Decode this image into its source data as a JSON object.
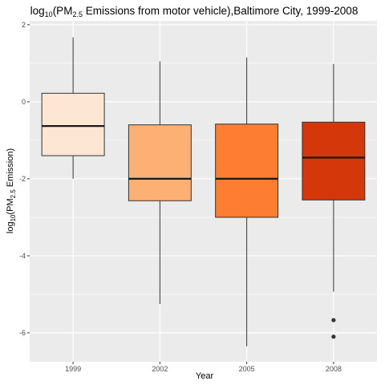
{
  "chart_data": {
    "type": "boxplot",
    "title": {
      "prefix": "log",
      "prefix_sub": "10",
      "paren_open": "(PM",
      "pm_sub": "2.5",
      "rest": " Emissions from motor vehicle),Baltimore City, 1999-2008"
    },
    "xlabel": "Year",
    "ylabel": {
      "prefix": "log",
      "prefix_sub": "10",
      "paren_open": "(PM",
      "pm_sub": "2.5",
      "rest": " Emission)"
    },
    "ylim": [
      -6.75,
      2.1
    ],
    "yticks": [
      2,
      0,
      -2,
      -4,
      -6
    ],
    "categories": [
      "1999",
      "2002",
      "2005",
      "2008"
    ],
    "fill_colors": [
      "#fee6d5",
      "#fdb074",
      "#fd7d33",
      "#d4380a"
    ],
    "boxes": [
      {
        "year": "1999",
        "whisker_low": -2.0,
        "q1": -1.4,
        "median": -0.63,
        "q3": 0.22,
        "whisker_high": 1.67,
        "outliers": []
      },
      {
        "year": "2002",
        "whisker_low": -5.25,
        "q1": -2.57,
        "median": -2.0,
        "q3": -0.6,
        "whisker_high": 1.05,
        "outliers": []
      },
      {
        "year": "2005",
        "whisker_low": -6.35,
        "q1": -3.0,
        "median": -2.0,
        "q3": -0.58,
        "whisker_high": 1.15,
        "outliers": []
      },
      {
        "year": "2008",
        "whisker_low": -4.93,
        "q1": -2.55,
        "median": -1.45,
        "q3": -0.53,
        "whisker_high": 0.98,
        "outliers": [
          -5.67,
          -6.1
        ]
      }
    ],
    "grid": true,
    "panel_color": "#ebebeb",
    "grid_color": "#ffffff"
  }
}
